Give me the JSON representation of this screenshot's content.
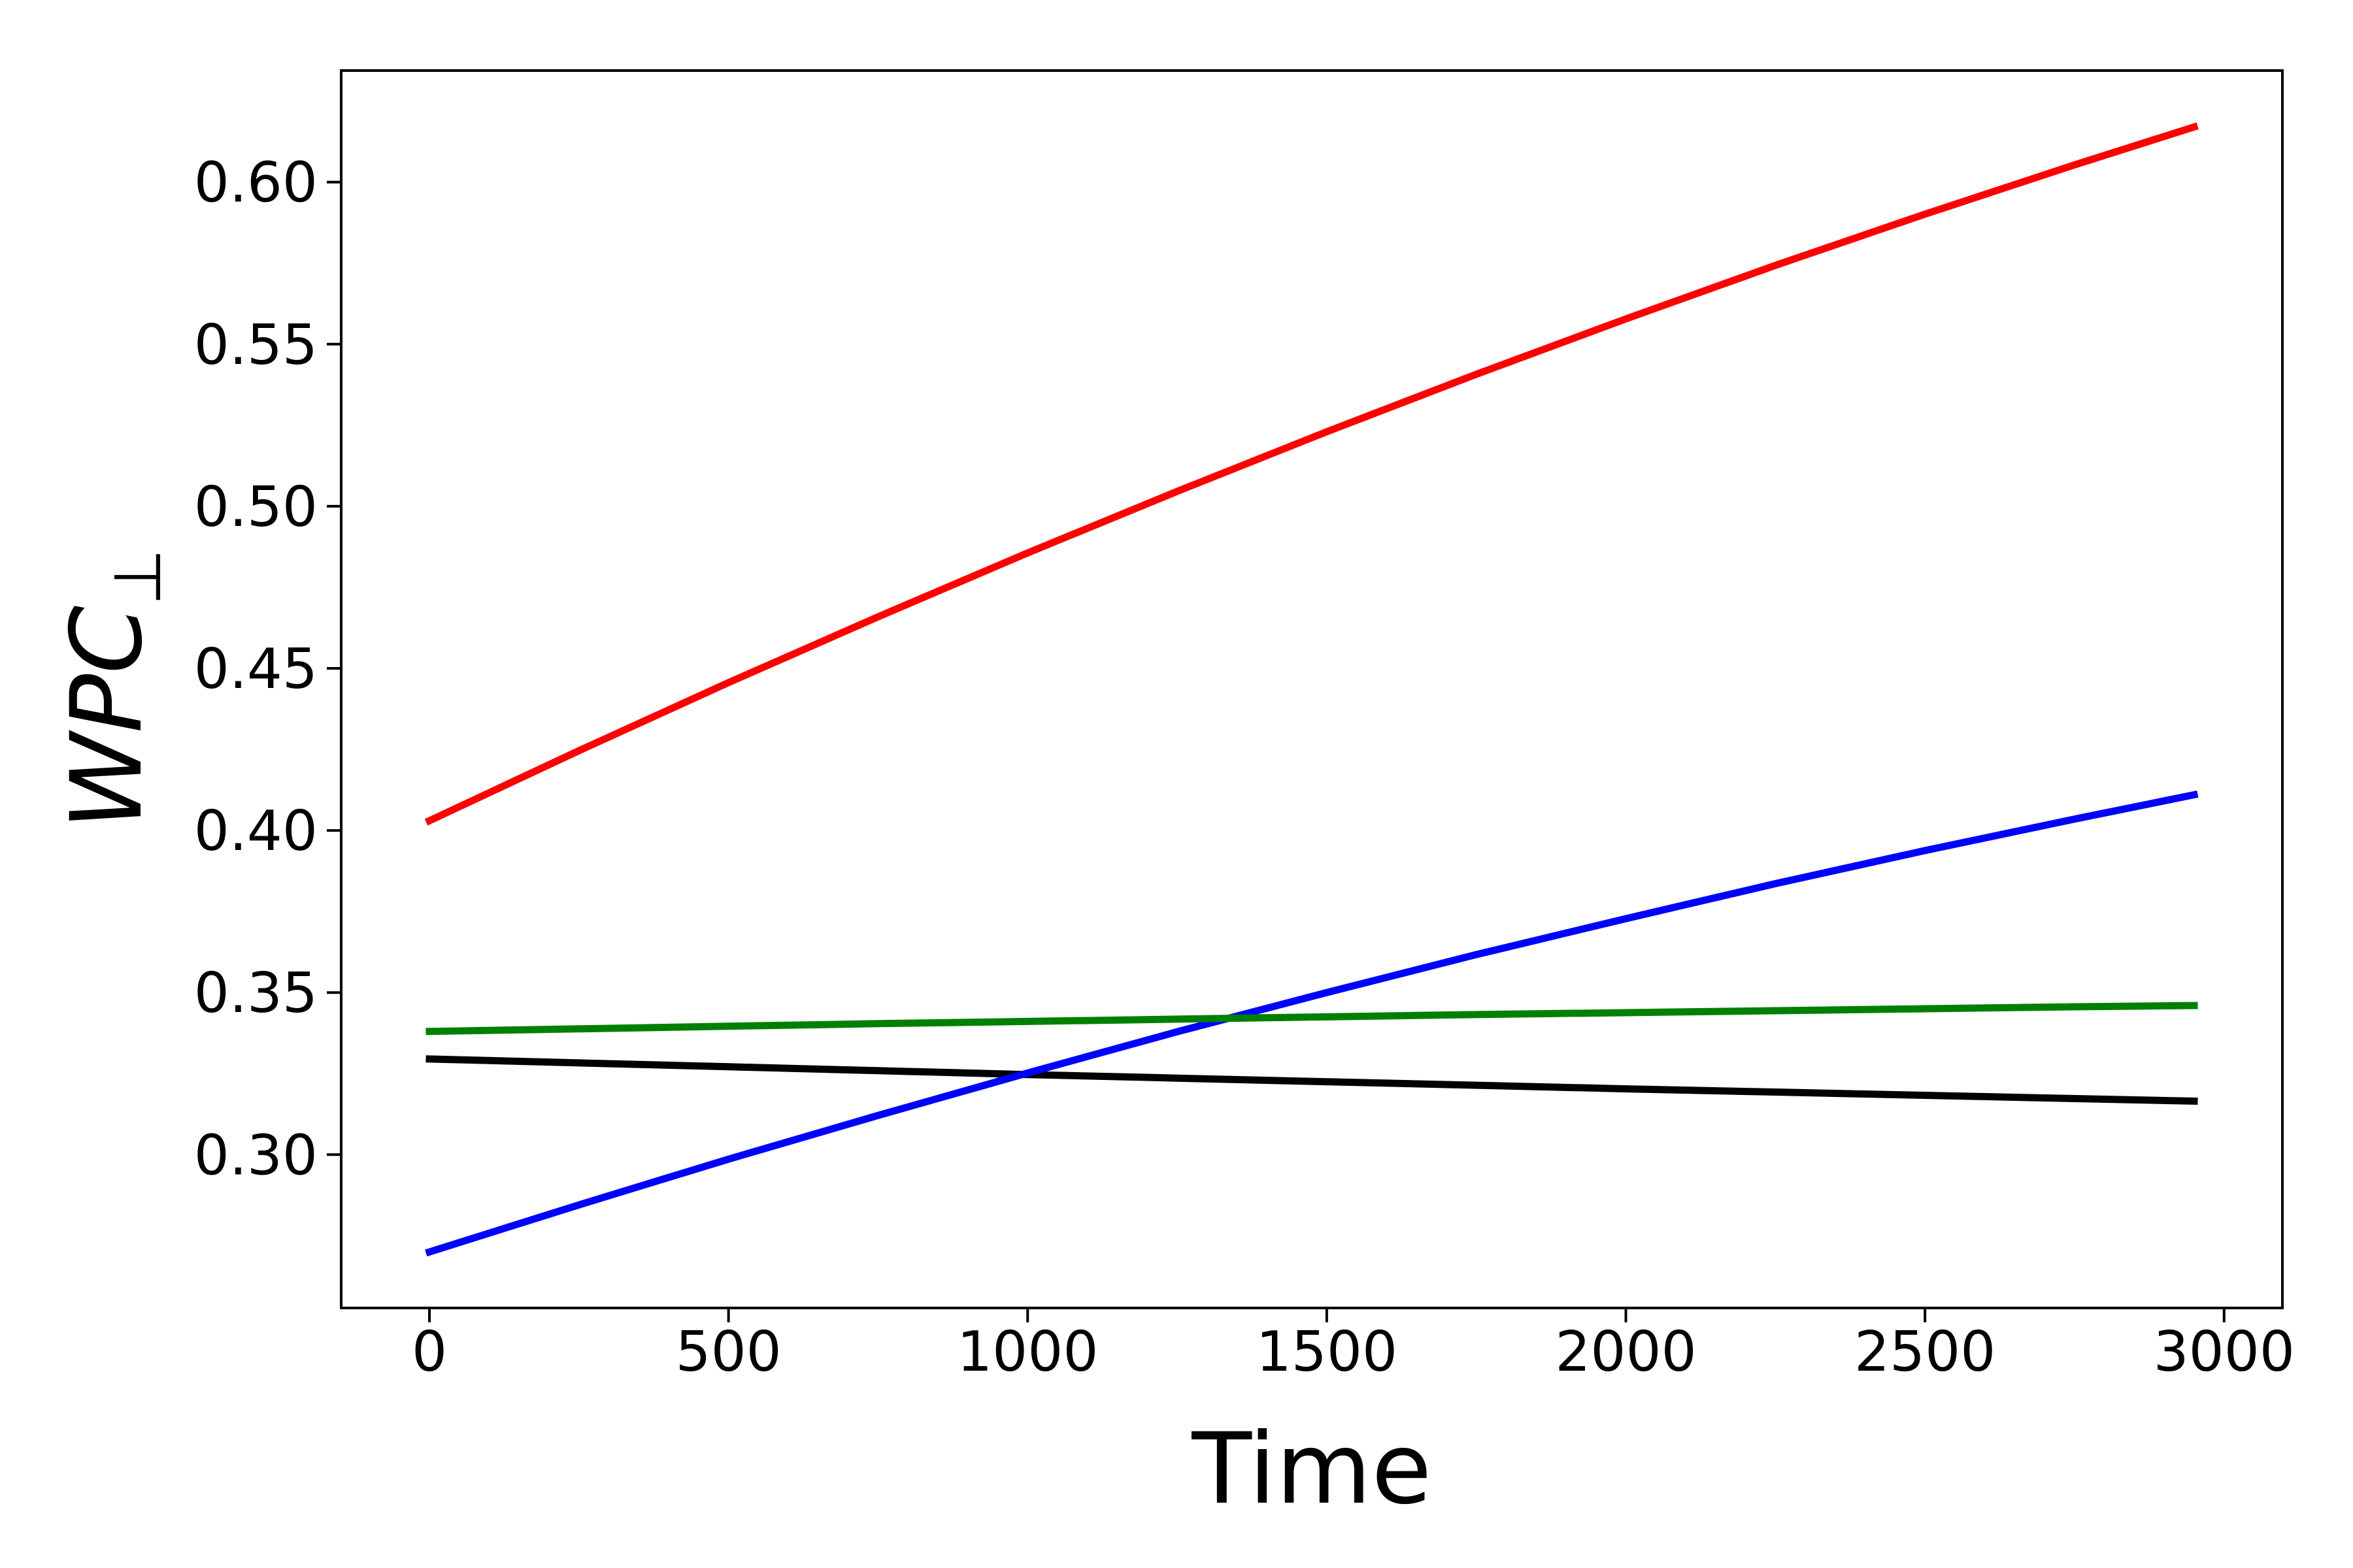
{
  "chart_data": {
    "type": "line",
    "title": "",
    "xlabel": "Time",
    "ylabel": "WPC⊥",
    "ylabel_main": "WPC",
    "ylabel_sub": "⊥",
    "background_color": "#ffffff",
    "grid": false,
    "legend_position": "none",
    "xlim": [
      -147.5,
      3097.5
    ],
    "ylim": [
      0.2527,
      0.6344
    ],
    "x_ticks": {
      "values": [
        0,
        500,
        1000,
        1500,
        2000,
        2500,
        3000
      ],
      "labels": [
        "0",
        "500",
        "1000",
        "1500",
        "2000",
        "2500",
        "3000"
      ]
    },
    "y_ticks": {
      "values": [
        0.3,
        0.35,
        0.4,
        0.45,
        0.5,
        0.55,
        0.6
      ],
      "labels": [
        "0.30",
        "0.35",
        "0.40",
        "0.45",
        "0.50",
        "0.55",
        "0.60"
      ]
    },
    "x": [
      0,
      250,
      500,
      750,
      1000,
      1250,
      1500,
      1750,
      2000,
      2250,
      2500,
      2750,
      2950
    ],
    "series": [
      {
        "name": "black",
        "color": "#000000",
        "values": [
          0.3295,
          0.3283,
          0.3271,
          0.3259,
          0.3247,
          0.3236,
          0.3225,
          0.3214,
          0.3203,
          0.3193,
          0.3183,
          0.3173,
          0.3165
        ]
      },
      {
        "name": "blue",
        "color": "#0000ff",
        "values": [
          0.27,
          0.2845,
          0.2986,
          0.3121,
          0.3252,
          0.3379,
          0.35,
          0.3617,
          0.3728,
          0.3836,
          0.3938,
          0.4035,
          0.411
        ]
      },
      {
        "name": "green",
        "color": "#008000",
        "values": [
          0.338,
          0.3388,
          0.3396,
          0.3404,
          0.3411,
          0.3418,
          0.3425,
          0.3432,
          0.3438,
          0.3444,
          0.345,
          0.3456,
          0.346
        ]
      },
      {
        "name": "red",
        "color": "#ff0000",
        "values": [
          0.403,
          0.4246,
          0.4456,
          0.4659,
          0.4856,
          0.5046,
          0.523,
          0.5407,
          0.5578,
          0.5743,
          0.5901,
          0.6053,
          0.617
        ]
      }
    ]
  }
}
